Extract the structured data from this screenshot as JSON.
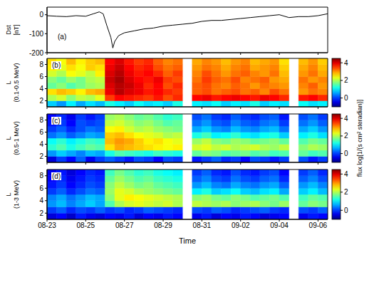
{
  "chart_data": [
    {
      "type": "line",
      "panel": "(a)",
      "y_label": "Dst [nT]",
      "color": "#000000",
      "x": [
        0,
        0.5,
        1,
        1.5,
        2,
        2.4,
        2.7,
        2.9,
        3.1,
        3.3,
        3.4,
        3.5,
        3.7,
        4,
        4.5,
        5,
        5.5,
        6,
        6.5,
        7,
        7.5,
        8,
        8.5,
        9,
        9.5,
        10,
        10.5,
        11,
        11.5,
        12,
        12.5,
        13,
        13.5,
        14,
        14.5
      ],
      "values": [
        -5,
        -8,
        -10,
        -5,
        -8,
        5,
        15,
        5,
        -60,
        -120,
        -175,
        -140,
        -110,
        -95,
        -85,
        -75,
        -70,
        -60,
        -55,
        -50,
        -45,
        -35,
        -30,
        -30,
        -25,
        -20,
        -15,
        -10,
        -5,
        0,
        -15,
        -10,
        -10,
        -5,
        5
      ],
      "xlim": [
        0,
        14.5
      ],
      "xticks": [
        {
          "value": 0,
          "label": "08-23"
        },
        {
          "value": 2,
          "label": "08-25"
        },
        {
          "value": 4,
          "label": "08-27"
        },
        {
          "value": 6,
          "label": "08-29"
        },
        {
          "value": 8,
          "label": "08-31"
        },
        {
          "value": 10,
          "label": "09-02"
        },
        {
          "value": 12,
          "label": "09-04"
        },
        {
          "value": 14,
          "label": "09-06"
        }
      ],
      "ylim": [
        -200,
        40
      ],
      "yticks": [
        -200,
        -100,
        0
      ],
      "tick_labels": "y"
    },
    {
      "type": "heatmap",
      "panel": "(b)",
      "y_label": "L (0.1-0.5 MeV)",
      "x_edges": [
        0,
        0.5,
        1,
        1.5,
        2,
        2.5,
        3,
        3.5,
        4,
        4.5,
        5,
        5.5,
        6,
        6.5,
        7,
        7.5,
        8,
        8.5,
        9,
        9.5,
        10,
        10.5,
        11,
        11.5,
        12,
        12.5,
        13,
        13.5,
        14,
        14.5
      ],
      "y_edges": [
        1,
        2,
        3,
        4,
        5,
        6,
        7,
        8,
        9
      ],
      "z": [
        [
          0.8,
          0.5,
          1.0,
          0.6,
          0.9,
          0.7,
          1.2,
          1.0,
          0.8,
          1.1,
          0.9,
          1.0,
          0.8,
          1.2,
          null,
          1.0,
          0.9,
          1.1,
          0.8,
          1.0,
          0.9,
          1.2,
          0.8,
          1.0,
          0.9,
          null,
          1.1,
          0.9,
          1.0
        ],
        [
          2.0,
          2.2,
          1.8,
          2.1,
          2.0,
          2.3,
          3.5,
          3.8,
          3.7,
          3.6,
          3.5,
          3.7,
          3.4,
          3.6,
          null,
          3.8,
          3.9,
          3.7,
          3.8,
          3.9,
          3.8,
          3.7,
          3.9,
          3.8,
          3.6,
          null,
          3.7,
          3.8,
          3.6
        ],
        [
          2.6,
          2.8,
          2.7,
          2.5,
          2.8,
          2.9,
          3.9,
          4.2,
          4.0,
          3.9,
          3.7,
          3.8,
          3.6,
          3.5,
          null,
          3.3,
          3.4,
          3.2,
          3.3,
          3.4,
          3.2,
          3.3,
          3.1,
          3.4,
          3.2,
          null,
          3.0,
          3.2,
          3.1
        ],
        [
          1.6,
          1.8,
          1.5,
          1.7,
          1.9,
          2.0,
          4.0,
          4.2,
          4.1,
          3.9,
          3.6,
          3.8,
          3.4,
          3.6,
          null,
          3.3,
          3.4,
          3.2,
          3.1,
          3.3,
          3.2,
          3.0,
          3.2,
          3.1,
          3.0,
          null,
          3.1,
          3.3,
          3.0
        ],
        [
          1.8,
          1.6,
          1.9,
          1.7,
          2.0,
          2.1,
          4.1,
          4.3,
          4.0,
          3.8,
          3.7,
          3.9,
          3.5,
          3.4,
          null,
          3.2,
          3.5,
          3.3,
          3.2,
          3.4,
          3.1,
          3.2,
          3.3,
          3.0,
          2.9,
          null,
          3.2,
          3.0,
          3.1
        ],
        [
          2.2,
          2.0,
          2.4,
          2.3,
          2.1,
          2.5,
          4.0,
          4.2,
          3.9,
          3.7,
          3.8,
          3.6,
          3.3,
          3.5,
          null,
          3.1,
          3.4,
          3.2,
          3.0,
          3.2,
          3.3,
          3.1,
          3.0,
          3.2,
          2.8,
          null,
          3.0,
          3.2,
          2.9
        ],
        [
          2.5,
          2.3,
          2.6,
          2.4,
          2.7,
          2.6,
          3.9,
          4.1,
          3.8,
          3.6,
          3.7,
          3.4,
          3.2,
          3.3,
          null,
          3.0,
          3.2,
          3.1,
          2.9,
          3.1,
          3.2,
          2.9,
          3.0,
          3.1,
          2.7,
          null,
          2.9,
          3.1,
          2.8
        ],
        [
          2.6,
          2.4,
          2.8,
          2.5,
          2.7,
          2.8,
          3.8,
          4.0,
          3.7,
          3.5,
          3.6,
          3.3,
          3.1,
          3.2,
          null,
          2.9,
          3.1,
          3.0,
          2.8,
          3.0,
          3.1,
          2.8,
          2.9,
          3.0,
          2.6,
          null,
          2.8,
          3.0,
          2.7
        ]
      ],
      "colorbar": {
        "zlim": [
          -1,
          4.5
        ],
        "zticks": [
          0,
          2,
          4
        ]
      },
      "xlim": [
        0,
        14.5
      ],
      "xticks": [
        {
          "value": 0,
          "label": "08-23"
        },
        {
          "value": 2,
          "label": "08-25"
        },
        {
          "value": 4,
          "label": "08-27"
        },
        {
          "value": 6,
          "label": "08-29"
        },
        {
          "value": 8,
          "label": "08-31"
        },
        {
          "value": 10,
          "label": "09-02"
        },
        {
          "value": 12,
          "label": "09-04"
        },
        {
          "value": 14,
          "label": "09-06"
        }
      ],
      "ylim": [
        1,
        9
      ],
      "yticks": [
        2,
        4,
        6,
        8
      ],
      "tick_labels": "y"
    },
    {
      "type": "heatmap",
      "panel": "(c)",
      "y_label": "L (0.5-1 MeV)",
      "x_edges": [
        0,
        0.5,
        1,
        1.5,
        2,
        2.5,
        3,
        3.5,
        4,
        4.5,
        5,
        5.5,
        6,
        6.5,
        7,
        7.5,
        8,
        8.5,
        9,
        9.5,
        10,
        10.5,
        11,
        11.5,
        12,
        12.5,
        13,
        13.5,
        14,
        14.5
      ],
      "y_edges": [
        1,
        2,
        3,
        4,
        5,
        6,
        7,
        8,
        9
      ],
      "z": [
        [
          -0.5,
          0.0,
          -0.3,
          0.2,
          -0.4,
          0.0,
          0.2,
          0.0,
          -0.2,
          0.1,
          0.0,
          -0.3,
          0.1,
          0.0,
          null,
          -0.2,
          0.0,
          0.2,
          -0.1,
          0.0,
          -0.3,
          0.1,
          0.0,
          -0.2,
          0.0,
          null,
          0.1,
          -0.2,
          0.0
        ],
        [
          0.5,
          0.8,
          0.6,
          0.4,
          0.7,
          0.6,
          1.2,
          1.5,
          1.4,
          1.3,
          1.2,
          1.4,
          1.3,
          1.2,
          null,
          1.6,
          1.8,
          1.7,
          1.5,
          1.6,
          1.7,
          1.5,
          1.6,
          1.4,
          1.5,
          null,
          1.6,
          1.4,
          1.5
        ],
        [
          1.3,
          1.5,
          1.2,
          1.4,
          1.6,
          1.5,
          2.6,
          2.9,
          2.8,
          2.7,
          2.6,
          2.5,
          2.4,
          2.5,
          null,
          2.2,
          2.3,
          2.1,
          2.2,
          2.0,
          2.1,
          2.2,
          2.0,
          1.9,
          2.1,
          null,
          1.8,
          2.0,
          1.9
        ],
        [
          1.1,
          1.3,
          1.0,
          1.2,
          1.4,
          1.3,
          2.8,
          3.0,
          2.9,
          2.7,
          2.5,
          2.6,
          2.4,
          2.3,
          null,
          1.9,
          2.1,
          1.8,
          1.7,
          1.9,
          1.8,
          1.6,
          1.7,
          1.8,
          1.6,
          null,
          1.5,
          1.7,
          1.6
        ],
        [
          0.3,
          0.5,
          0.2,
          0.4,
          0.6,
          0.5,
          2.7,
          2.8,
          2.6,
          2.4,
          2.3,
          2.2,
          2.0,
          2.1,
          null,
          1.2,
          1.4,
          1.0,
          1.1,
          1.3,
          1.0,
          0.9,
          1.1,
          1.2,
          0.8,
          null,
          1.0,
          1.2,
          0.9
        ],
        [
          0.0,
          0.2,
          -0.1,
          0.1,
          0.3,
          0.2,
          2.4,
          2.5,
          2.2,
          2.0,
          2.1,
          1.9,
          1.8,
          1.7,
          null,
          0.6,
          0.8,
          0.5,
          0.4,
          0.7,
          0.5,
          0.4,
          0.6,
          0.7,
          0.3,
          null,
          0.6,
          0.8,
          0.5
        ],
        [
          -0.2,
          0.0,
          -0.3,
          0.1,
          0.0,
          0.1,
          2.1,
          2.2,
          2.0,
          1.8,
          1.9,
          1.7,
          1.5,
          1.6,
          null,
          0.3,
          0.5,
          0.2,
          0.1,
          0.4,
          0.2,
          0.1,
          0.3,
          0.4,
          0.0,
          null,
          0.3,
          0.5,
          0.2
        ],
        [
          -0.3,
          -0.1,
          -0.4,
          0.0,
          -0.2,
          0.0,
          1.9,
          2.0,
          1.8,
          1.6,
          1.7,
          1.5,
          1.3,
          1.4,
          null,
          0.1,
          0.3,
          0.0,
          -0.1,
          0.2,
          0.0,
          -0.1,
          0.1,
          0.2,
          -0.2,
          null,
          0.1,
          0.3,
          0.0
        ]
      ],
      "colorbar": {
        "zlim": [
          -1,
          4.5
        ],
        "zticks": [
          0,
          2,
          4
        ],
        "label": "flux log[1/(s cm² steradian)]"
      },
      "xlim": [
        0,
        14.5
      ],
      "xticks": [
        {
          "value": 0,
          "label": "08-23"
        },
        {
          "value": 2,
          "label": "08-25"
        },
        {
          "value": 4,
          "label": "08-27"
        },
        {
          "value": 6,
          "label": "08-29"
        },
        {
          "value": 8,
          "label": "08-31"
        },
        {
          "value": 10,
          "label": "09-02"
        },
        {
          "value": 12,
          "label": "09-04"
        },
        {
          "value": 14,
          "label": "09-06"
        }
      ],
      "ylim": [
        1,
        9
      ],
      "yticks": [
        2,
        4,
        6,
        8
      ],
      "tick_labels": "y"
    },
    {
      "type": "heatmap",
      "panel": "(d)",
      "y_label": "L (1-3 MeV)",
      "x_label": "Time",
      "x_edges": [
        0,
        0.5,
        1,
        1.5,
        2,
        2.5,
        3,
        3.5,
        4,
        4.5,
        5,
        5.5,
        6,
        6.5,
        7,
        7.5,
        8,
        8.5,
        9,
        9.5,
        10,
        10.5,
        11,
        11.5,
        12,
        12.5,
        13,
        13.5,
        14,
        14.5
      ],
      "y_edges": [
        1,
        2,
        3,
        4,
        5,
        6,
        7,
        8,
        9
      ],
      "z": [
        [
          -0.5,
          -0.3,
          -0.6,
          -0.2,
          -0.4,
          -0.5,
          -0.3,
          -0.4,
          -0.2,
          -0.5,
          -0.3,
          -0.4,
          -0.2,
          -0.3,
          null,
          -0.4,
          -0.2,
          -0.5,
          -0.3,
          -0.4,
          -0.2,
          -0.3,
          -0.5,
          -0.4,
          -0.3,
          null,
          -0.4,
          -0.2,
          -0.3
        ],
        [
          0.0,
          0.2,
          -0.1,
          0.1,
          0.0,
          0.2,
          0.0,
          0.1,
          -0.1,
          0.0,
          0.2,
          0.1,
          0.0,
          -0.1,
          null,
          0.1,
          0.0,
          0.2,
          0.1,
          -0.1,
          0.0,
          0.1,
          0.2,
          0.0,
          -0.1,
          null,
          0.1,
          0.0,
          0.2
        ],
        [
          0.5,
          0.7,
          0.4,
          0.6,
          0.8,
          0.6,
          1.5,
          2.0,
          2.2,
          2.3,
          2.2,
          2.1,
          2.2,
          2.0,
          null,
          2.1,
          2.0,
          1.9,
          2.0,
          1.8,
          1.9,
          2.0,
          1.8,
          1.7,
          1.9,
          null,
          1.6,
          1.8,
          1.7
        ],
        [
          0.4,
          0.6,
          0.3,
          0.5,
          0.7,
          0.6,
          1.8,
          2.3,
          2.5,
          2.4,
          2.3,
          2.2,
          2.1,
          2.0,
          null,
          1.8,
          1.9,
          1.7,
          1.6,
          1.8,
          1.7,
          1.5,
          1.6,
          1.7,
          1.5,
          null,
          1.4,
          1.6,
          1.5
        ],
        [
          0.0,
          0.2,
          -0.1,
          0.1,
          0.3,
          0.2,
          1.9,
          2.3,
          2.2,
          2.0,
          1.9,
          1.8,
          1.7,
          1.6,
          null,
          1.0,
          1.2,
          0.8,
          0.9,
          1.1,
          0.8,
          0.7,
          0.9,
          1.0,
          0.6,
          null,
          0.8,
          1.0,
          0.7
        ],
        [
          -0.2,
          0.0,
          -0.3,
          -0.1,
          0.1,
          0.0,
          1.8,
          2.1,
          1.9,
          1.7,
          1.8,
          1.6,
          1.5,
          1.4,
          null,
          0.5,
          0.7,
          0.4,
          0.3,
          0.6,
          0.4,
          0.3,
          0.5,
          0.6,
          0.2,
          null,
          0.5,
          0.7,
          0.4
        ],
        [
          -0.3,
          -0.1,
          -0.4,
          -0.2,
          0.0,
          -0.1,
          1.6,
          1.9,
          1.7,
          1.5,
          1.6,
          1.4,
          1.3,
          1.2,
          null,
          0.2,
          0.4,
          0.1,
          0.0,
          0.3,
          0.1,
          0.0,
          0.2,
          0.3,
          -0.1,
          null,
          0.2,
          0.4,
          0.1
        ],
        [
          -0.4,
          -0.2,
          -0.5,
          -0.3,
          -0.1,
          -0.2,
          1.4,
          1.7,
          1.5,
          1.3,
          1.4,
          1.2,
          1.1,
          1.0,
          null,
          0.0,
          0.2,
          -0.1,
          -0.2,
          0.1,
          -0.1,
          -0.2,
          0.0,
          0.1,
          -0.3,
          null,
          0.0,
          0.2,
          -0.1
        ]
      ],
      "colorbar": {
        "zlim": [
          -1,
          4.5
        ],
        "zticks": [
          0,
          2,
          4
        ]
      },
      "xlim": [
        0,
        14.5
      ],
      "xticks": [
        {
          "value": 0,
          "label": "08-23"
        },
        {
          "value": 2,
          "label": "08-25"
        },
        {
          "value": 4,
          "label": "08-27"
        },
        {
          "value": 6,
          "label": "08-29"
        },
        {
          "value": 8,
          "label": "08-31"
        },
        {
          "value": 10,
          "label": "09-02"
        },
        {
          "value": 12,
          "label": "09-04"
        },
        {
          "value": 14,
          "label": "09-06"
        }
      ],
      "ylim": [
        1,
        9
      ],
      "yticks": [
        2,
        4,
        6,
        8
      ]
    }
  ]
}
